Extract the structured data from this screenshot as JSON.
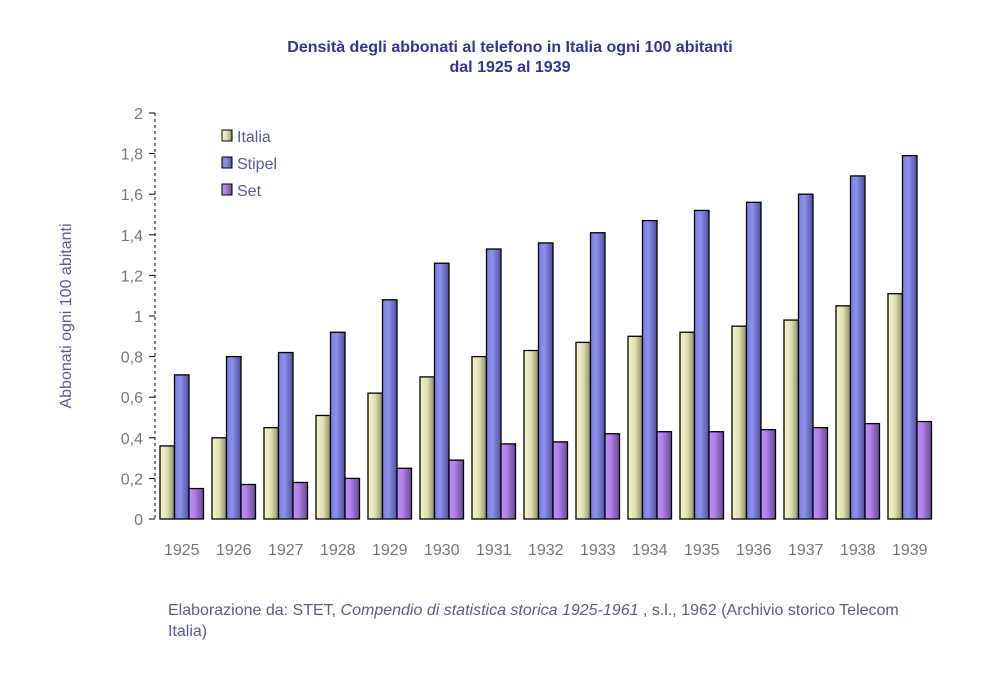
{
  "chart_data": {
    "type": "bar",
    "title": [
      "Densità degli abbonati al telefono in Italia ogni 100 abitanti",
      "dal 1925 al 1939"
    ],
    "xlabel": "",
    "ylabel": "Abbonati ogni 100 abitanti",
    "ylim": [
      0,
      2
    ],
    "yticks": [
      "0",
      "0,2",
      "0,4",
      "0,6",
      "0,8",
      "1",
      "1,2",
      "1,4",
      "1,6",
      "1,8",
      "2"
    ],
    "categories": [
      "1925",
      "1926",
      "1927",
      "1928",
      "1929",
      "1930",
      "1931",
      "1932",
      "1933",
      "1934",
      "1935",
      "1936",
      "1937",
      "1938",
      "1939"
    ],
    "legend_position": "top-left",
    "series": [
      {
        "name": "Italia",
        "color": "#e8e8b8",
        "values": [
          0.36,
          0.4,
          0.45,
          0.51,
          0.62,
          0.7,
          0.8,
          0.83,
          0.87,
          0.9,
          0.92,
          0.95,
          0.98,
          1.05,
          1.11
        ]
      },
      {
        "name": "Stipel",
        "color": "#8080e8",
        "values": [
          0.71,
          0.8,
          0.82,
          0.92,
          1.08,
          1.26,
          1.33,
          1.36,
          1.41,
          1.47,
          1.52,
          1.56,
          1.6,
          1.69,
          1.79
        ]
      },
      {
        "name": "Set",
        "color": "#b080e8",
        "values": [
          0.15,
          0.17,
          0.18,
          0.2,
          0.25,
          0.29,
          0.37,
          0.38,
          0.42,
          0.43,
          0.43,
          0.44,
          0.45,
          0.47,
          0.48
        ]
      }
    ]
  },
  "source": {
    "prefix": "Elaborazione da: STET, ",
    "work": "Compendio di statistica storica 1925-1961",
    "suffix": " , s.l., 1962 (Archivio storico Telecom Italia)"
  }
}
